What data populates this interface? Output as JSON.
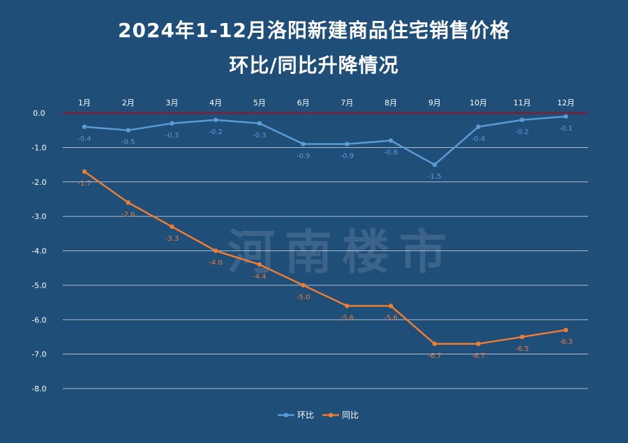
{
  "title_line1": "2024年1-12月洛阳新建商品住宅销售价格",
  "title_line2": "环比/同比升降情况",
  "watermark": "河南楼市",
  "chart_data": {
    "type": "line",
    "categories": [
      "1月",
      "2月",
      "3月",
      "4月",
      "5月",
      "6月",
      "7月",
      "8月",
      "9月",
      "10月",
      "11月",
      "12月"
    ],
    "series": [
      {
        "name": "环比",
        "color": "#5b9bd5",
        "values": [
          -0.4,
          -0.5,
          -0.3,
          -0.2,
          -0.3,
          -0.9,
          -0.9,
          -0.8,
          -1.5,
          -0.4,
          -0.2,
          -0.1
        ]
      },
      {
        "name": "同比",
        "color": "#ed7d31",
        "values": [
          -1.7,
          -2.6,
          -3.3,
          -4.0,
          -4.4,
          -5.0,
          -5.6,
          -5.6,
          -6.7,
          -6.7,
          -6.5,
          -6.3
        ]
      }
    ],
    "ylim": [
      -8.0,
      0.0
    ],
    "yticks": [
      "0.0",
      "-1.0",
      "-2.0",
      "-3.0",
      "-4.0",
      "-5.0",
      "-6.0",
      "-7.0",
      "-8.0"
    ],
    "zero_line_color": "#c00000",
    "grid": true,
    "legend": "bottom",
    "x_axis_position": "top"
  }
}
